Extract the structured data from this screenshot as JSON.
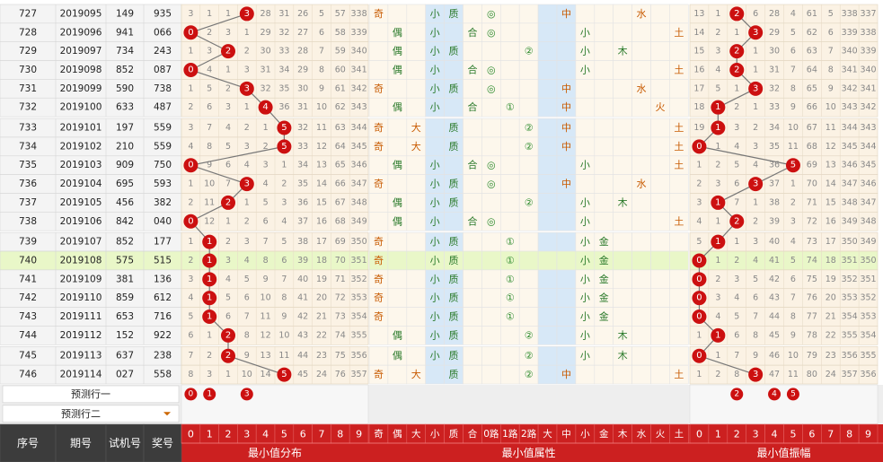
{
  "columns": {
    "info_headers": [
      "序号",
      "期号",
      "试机号",
      "奖号"
    ],
    "digits": [
      "0",
      "1",
      "2",
      "3",
      "4",
      "5",
      "6",
      "7",
      "8",
      "9"
    ],
    "attr_headers": [
      "奇",
      "偶",
      "大",
      "小",
      "质",
      "合",
      "0路",
      "1路",
      "2路",
      "大",
      "中",
      "小",
      "金",
      "木",
      "水",
      "火",
      "土"
    ],
    "group_titles": [
      "最小值分布",
      "最小值属性",
      "最小值振幅"
    ]
  },
  "predict": {
    "row1_label": "预测行一",
    "row2_label": "预测行二",
    "row1_dist": [
      "0",
      "1",
      "3"
    ],
    "row1_amp": [
      "2",
      "4",
      "5"
    ]
  },
  "rows": [
    {
      "seq": "727",
      "issue": "2019095",
      "test": "149",
      "draw": "935",
      "dist": [
        "3",
        "1",
        "1",
        "3",
        "28",
        "31",
        "26",
        "5",
        "57",
        "338"
      ],
      "attr": [
        "奇",
        "",
        "",
        "小",
        "质",
        "",
        "◎",
        "",
        "",
        "",
        "中",
        "",
        "",
        "",
        "水",
        "",
        ""
      ],
      "amp": [
        "13",
        "1",
        "2",
        "6",
        "28",
        "4",
        "61",
        "5",
        "338",
        "337"
      ]
    },
    {
      "seq": "728",
      "issue": "2019096",
      "test": "941",
      "draw": "066",
      "dist": [
        "0",
        "2",
        "3",
        "1",
        "29",
        "32",
        "27",
        "6",
        "58",
        "339"
      ],
      "attr": [
        "",
        "偶",
        "",
        "小",
        "",
        "合",
        "◎",
        "",
        "",
        "",
        "",
        "小",
        "",
        "",
        "",
        "",
        "土"
      ],
      "amp": [
        "14",
        "2",
        "1",
        "3",
        "29",
        "5",
        "62",
        "6",
        "339",
        "338"
      ]
    },
    {
      "seq": "729",
      "issue": "2019097",
      "test": "734",
      "draw": "243",
      "dist": [
        "1",
        "3",
        "2",
        "2",
        "30",
        "33",
        "28",
        "7",
        "59",
        "340"
      ],
      "attr": [
        "",
        "偶",
        "",
        "小",
        "质",
        "",
        "",
        "",
        "②",
        "",
        "",
        "小",
        "",
        "木",
        "",
        "",
        ""
      ],
      "amp": [
        "15",
        "3",
        "2",
        "1",
        "30",
        "6",
        "63",
        "7",
        "340",
        "339"
      ]
    },
    {
      "seq": "730",
      "issue": "2019098",
      "test": "852",
      "draw": "087",
      "dist": [
        "0",
        "4",
        "1",
        "3",
        "31",
        "34",
        "29",
        "8",
        "60",
        "341"
      ],
      "attr": [
        "",
        "偶",
        "",
        "小",
        "",
        "合",
        "◎",
        "",
        "",
        "",
        "",
        "小",
        "",
        "",
        "",
        "",
        "土"
      ],
      "amp": [
        "16",
        "4",
        "2",
        "1",
        "31",
        "7",
        "64",
        "8",
        "341",
        "340"
      ]
    },
    {
      "seq": "731",
      "issue": "2019099",
      "test": "590",
      "draw": "738",
      "dist": [
        "1",
        "5",
        "2",
        "3",
        "32",
        "35",
        "30",
        "9",
        "61",
        "342"
      ],
      "attr": [
        "奇",
        "",
        "",
        "小",
        "质",
        "",
        "◎",
        "",
        "",
        "",
        "中",
        "",
        "",
        "",
        "水",
        "",
        ""
      ],
      "amp": [
        "17",
        "5",
        "1",
        "3",
        "32",
        "8",
        "65",
        "9",
        "342",
        "341"
      ]
    },
    {
      "seq": "732",
      "issue": "2019100",
      "test": "633",
      "draw": "487",
      "dist": [
        "2",
        "6",
        "3",
        "1",
        "4",
        "36",
        "31",
        "10",
        "62",
        "343"
      ],
      "attr": [
        "",
        "偶",
        "",
        "小",
        "",
        "合",
        "",
        "①",
        "",
        "",
        "中",
        "",
        "",
        "",
        "",
        "火",
        ""
      ],
      "amp": [
        "18",
        "1",
        "2",
        "1",
        "33",
        "9",
        "66",
        "10",
        "343",
        "342"
      ]
    },
    {
      "seq": "733",
      "issue": "2019101",
      "test": "197",
      "draw": "559",
      "dist": [
        "3",
        "7",
        "4",
        "2",
        "1",
        "5",
        "32",
        "11",
        "63",
        "344"
      ],
      "attr": [
        "奇",
        "",
        "大",
        "",
        "质",
        "",
        "",
        "",
        "②",
        "",
        "中",
        "",
        "",
        "",
        "",
        "",
        "土"
      ],
      "amp": [
        "19",
        "1",
        "3",
        "2",
        "34",
        "10",
        "67",
        "11",
        "344",
        "343"
      ]
    },
    {
      "seq": "734",
      "issue": "2019102",
      "test": "210",
      "draw": "559",
      "dist": [
        "4",
        "8",
        "5",
        "3",
        "2",
        "5",
        "33",
        "12",
        "64",
        "345"
      ],
      "attr": [
        "奇",
        "",
        "大",
        "",
        "质",
        "",
        "",
        "",
        "②",
        "",
        "中",
        "",
        "",
        "",
        "",
        "",
        "土"
      ],
      "amp": [
        "0",
        "1",
        "4",
        "3",
        "35",
        "11",
        "68",
        "12",
        "345",
        "344"
      ]
    },
    {
      "seq": "735",
      "issue": "2019103",
      "test": "909",
      "draw": "750",
      "dist": [
        "0",
        "9",
        "6",
        "4",
        "3",
        "1",
        "34",
        "13",
        "65",
        "346"
      ],
      "attr": [
        "",
        "偶",
        "",
        "小",
        "",
        "合",
        "◎",
        "",
        "",
        "",
        "",
        "小",
        "",
        "",
        "",
        "",
        "土"
      ],
      "amp": [
        "1",
        "2",
        "5",
        "4",
        "36",
        "5",
        "69",
        "13",
        "346",
        "345"
      ]
    },
    {
      "seq": "736",
      "issue": "2019104",
      "test": "695",
      "draw": "593",
      "dist": [
        "1",
        "10",
        "7",
        "3",
        "4",
        "2",
        "35",
        "14",
        "66",
        "347"
      ],
      "attr": [
        "奇",
        "",
        "",
        "小",
        "质",
        "",
        "◎",
        "",
        "",
        "",
        "中",
        "",
        "",
        "",
        "水",
        "",
        ""
      ],
      "amp": [
        "2",
        "3",
        "6",
        "3",
        "37",
        "1",
        "70",
        "14",
        "347",
        "346"
      ]
    },
    {
      "seq": "737",
      "issue": "2019105",
      "test": "456",
      "draw": "382",
      "dist": [
        "2",
        "11",
        "2",
        "1",
        "5",
        "3",
        "36",
        "15",
        "67",
        "348"
      ],
      "attr": [
        "",
        "偶",
        "",
        "小",
        "质",
        "",
        "",
        "",
        "②",
        "",
        "",
        "小",
        "",
        "木",
        "",
        "",
        ""
      ],
      "amp": [
        "3",
        "1",
        "7",
        "1",
        "38",
        "2",
        "71",
        "15",
        "348",
        "347"
      ]
    },
    {
      "seq": "738",
      "issue": "2019106",
      "test": "842",
      "draw": "040",
      "dist": [
        "0",
        "12",
        "1",
        "2",
        "6",
        "4",
        "37",
        "16",
        "68",
        "349"
      ],
      "attr": [
        "",
        "偶",
        "",
        "小",
        "",
        "合",
        "◎",
        "",
        "",
        "",
        "",
        "小",
        "",
        "",
        "",
        "",
        "土"
      ],
      "amp": [
        "4",
        "1",
        "2",
        "2",
        "39",
        "3",
        "72",
        "16",
        "349",
        "348"
      ]
    },
    {
      "seq": "739",
      "issue": "2019107",
      "test": "852",
      "draw": "177",
      "dist": [
        "1",
        "1",
        "2",
        "3",
        "7",
        "5",
        "38",
        "17",
        "69",
        "350"
      ],
      "attr": [
        "奇",
        "",
        "",
        "小",
        "质",
        "",
        "",
        "①",
        "",
        "",
        "",
        "小",
        "金",
        "",
        "",
        "",
        ""
      ],
      "amp": [
        "5",
        "1",
        "1",
        "3",
        "40",
        "4",
        "73",
        "17",
        "350",
        "349"
      ]
    },
    {
      "seq": "740",
      "issue": "2019108",
      "test": "575",
      "draw": "515",
      "dist": [
        "2",
        "1",
        "3",
        "4",
        "8",
        "6",
        "39",
        "18",
        "70",
        "351"
      ],
      "attr": [
        "奇",
        "",
        "",
        "小",
        "质",
        "",
        "",
        "①",
        "",
        "",
        "",
        "小",
        "金",
        "",
        "",
        "",
        ""
      ],
      "amp": [
        "0",
        "1",
        "2",
        "4",
        "41",
        "5",
        "74",
        "18",
        "351",
        "350"
      ]
    },
    {
      "seq": "741",
      "issue": "2019109",
      "test": "381",
      "draw": "136",
      "dist": [
        "3",
        "1",
        "4",
        "5",
        "9",
        "7",
        "40",
        "19",
        "71",
        "352"
      ],
      "attr": [
        "奇",
        "",
        "",
        "小",
        "质",
        "",
        "",
        "①",
        "",
        "",
        "",
        "小",
        "金",
        "",
        "",
        "",
        ""
      ],
      "amp": [
        "0",
        "2",
        "3",
        "5",
        "42",
        "6",
        "75",
        "19",
        "352",
        "351"
      ]
    },
    {
      "seq": "742",
      "issue": "2019110",
      "test": "859",
      "draw": "612",
      "dist": [
        "4",
        "1",
        "5",
        "6",
        "10",
        "8",
        "41",
        "20",
        "72",
        "353"
      ],
      "attr": [
        "奇",
        "",
        "",
        "小",
        "质",
        "",
        "",
        "①",
        "",
        "",
        "",
        "小",
        "金",
        "",
        "",
        "",
        ""
      ],
      "amp": [
        "0",
        "3",
        "4",
        "6",
        "43",
        "7",
        "76",
        "20",
        "353",
        "352"
      ]
    },
    {
      "seq": "743",
      "issue": "2019111",
      "test": "653",
      "draw": "716",
      "dist": [
        "5",
        "1",
        "6",
        "7",
        "11",
        "9",
        "42",
        "21",
        "73",
        "354"
      ],
      "attr": [
        "奇",
        "",
        "",
        "小",
        "质",
        "",
        "",
        "①",
        "",
        "",
        "",
        "小",
        "金",
        "",
        "",
        "",
        ""
      ],
      "amp": [
        "0",
        "4",
        "5",
        "7",
        "44",
        "8",
        "77",
        "21",
        "354",
        "353"
      ]
    },
    {
      "seq": "744",
      "issue": "2019112",
      "test": "152",
      "draw": "922",
      "dist": [
        "6",
        "1",
        "2",
        "8",
        "12",
        "10",
        "43",
        "22",
        "74",
        "355"
      ],
      "attr": [
        "",
        "偶",
        "",
        "小",
        "质",
        "",
        "",
        "",
        "②",
        "",
        "",
        "小",
        "",
        "木",
        "",
        "",
        ""
      ],
      "amp": [
        "1",
        "1",
        "6",
        "8",
        "45",
        "9",
        "78",
        "22",
        "355",
        "354"
      ]
    },
    {
      "seq": "745",
      "issue": "2019113",
      "test": "637",
      "draw": "238",
      "dist": [
        "7",
        "2",
        "2",
        "9",
        "13",
        "11",
        "44",
        "23",
        "75",
        "356"
      ],
      "attr": [
        "",
        "偶",
        "",
        "小",
        "质",
        "",
        "",
        "",
        "②",
        "",
        "",
        "小",
        "",
        "木",
        "",
        "",
        ""
      ],
      "amp": [
        "0",
        "1",
        "7",
        "9",
        "46",
        "10",
        "79",
        "23",
        "356",
        "355"
      ]
    },
    {
      "seq": "746",
      "issue": "2019114",
      "test": "027",
      "draw": "558",
      "dist": [
        "8",
        "3",
        "1",
        "10",
        "14",
        "5",
        "45",
        "24",
        "76",
        "357"
      ],
      "attr": [
        "奇",
        "",
        "大",
        "",
        "质",
        "",
        "",
        "",
        "②",
        "",
        "中",
        "",
        "",
        "",
        "",
        "",
        "土"
      ],
      "amp": [
        "1",
        "2",
        "8",
        "3",
        "47",
        "11",
        "80",
        "24",
        "357",
        "356"
      ]
    }
  ],
  "hits": {
    "dist": [
      3,
      0,
      2,
      0,
      3,
      4,
      5,
      5,
      0,
      3,
      2,
      0,
      1,
      1,
      1,
      1,
      1,
      2,
      2,
      5
    ],
    "amp": [
      2,
      3,
      2,
      2,
      3,
      1,
      1,
      0,
      5,
      3,
      1,
      2,
      1,
      0,
      0,
      0,
      0,
      1,
      0,
      3
    ]
  },
  "colors": {
    "hit_ball": "#cc1010",
    "header_bg": "#cc2020",
    "footer_dark": "#3c3c3c"
  }
}
